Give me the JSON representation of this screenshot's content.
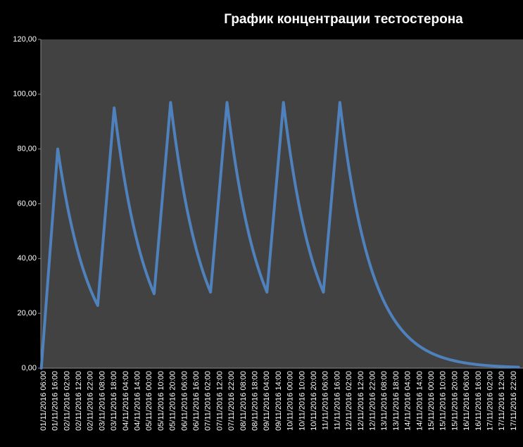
{
  "chart_data": {
    "type": "line",
    "title": "График концентрации тестостерона",
    "color": "#4f81bd",
    "ylim": [
      0,
      120
    ],
    "yticks": [
      {
        "value": 0,
        "label": "0,00"
      },
      {
        "value": 20,
        "label": "20,00"
      },
      {
        "value": 40,
        "label": "40,00"
      },
      {
        "value": 60,
        "label": "60,00"
      },
      {
        "value": 80,
        "label": "80,00"
      },
      {
        "value": 100,
        "label": "100,00"
      },
      {
        "value": 120,
        "label": "120,00"
      }
    ],
    "categories": [
      null,
      "01/11/2016 06:00",
      null,
      null,
      null,
      null,
      "01/11/2016 16:00",
      null,
      null,
      null,
      null,
      "02/11/2016 02:00",
      null,
      null,
      null,
      null,
      "02/11/2016 12:00",
      null,
      null,
      null,
      null,
      "02/11/2016 22:00",
      null,
      null,
      null,
      null,
      "03/11/2016 08:00",
      null,
      null,
      null,
      null,
      "03/11/2016 18:00",
      null,
      null,
      null,
      null,
      "04/11/2016 04:00",
      null,
      null,
      null,
      null,
      "04/11/2016 14:00",
      null,
      null,
      null,
      null,
      "05/11/2016 00:00",
      null,
      null,
      null,
      null,
      "05/11/2016 10:00",
      null,
      null,
      null,
      null,
      "05/11/2016 20:00",
      null,
      null,
      null,
      null,
      "06/11/2016 06:00",
      null,
      null,
      null,
      null,
      "06/11/2016 16:00",
      null,
      null,
      null,
      null,
      "07/11/2016 02:00",
      null,
      null,
      null,
      null,
      "07/11/2016 12:00",
      null,
      null,
      null,
      null,
      "07/11/2016 22:00",
      null,
      null,
      null,
      null,
      "08/11/2016 08:00",
      null,
      null,
      null,
      null,
      "08/11/2016 18:00",
      null,
      null,
      null,
      null,
      "09/11/2016 04:00",
      null,
      null,
      null,
      null,
      "09/11/2016 14:00",
      null,
      null,
      null,
      null,
      "10/11/2016 00:00",
      null,
      null,
      null,
      null,
      "10/11/2016 10:00",
      null,
      null,
      null,
      null,
      "10/11/2016 20:00",
      null,
      null,
      null,
      null,
      "11/11/2016 06:00",
      null,
      null,
      null,
      null,
      "11/11/2016 16:00",
      null,
      null,
      null,
      null,
      "12/11/2016 02:00",
      null,
      null,
      null,
      null,
      "12/11/2016 12:00",
      null,
      null,
      null,
      null,
      "12/11/2016 22:00",
      null,
      null,
      null,
      null,
      "13/11/2016 08:00",
      null,
      null,
      null,
      null,
      "13/11/2016 18:00",
      null,
      null,
      null,
      null,
      "14/11/2016 04:00",
      null,
      null,
      null,
      null,
      "14/11/2016 14:00",
      null,
      null,
      null,
      null,
      "15/11/2016 00:00",
      null,
      null,
      null,
      null,
      "15/11/2016 10:00",
      null,
      null,
      null,
      null,
      "15/11/2016 20:00",
      null,
      null,
      null,
      null,
      "16/11/2016 06:00",
      null,
      null,
      null,
      null,
      "16/11/2016 16:00",
      null,
      null,
      null,
      null,
      "17/11/2016 02:00",
      null,
      null,
      null,
      null,
      "17/11/2016 12:00",
      null,
      null,
      null,
      null,
      "17/11/2016 22:00",
      null,
      null
    ],
    "values": [
      0,
      11.43,
      22.86,
      34.29,
      45.71,
      57.14,
      68.57,
      80,
      74.32,
      69.04,
      64.14,
      59.59,
      55.36,
      51.43,
      47.77,
      44.38,
      41.23,
      38.3,
      35.58,
      33.06,
      30.71,
      28.53,
      26.5,
      24.62,
      22.87,
      33.17,
      43.48,
      53.78,
      64.08,
      74.39,
      84.69,
      95,
      88.26,
      81.99,
      76.17,
      70.76,
      65.73,
      61.07,
      56.73,
      52.7,
      48.96,
      45.48,
      42.25,
      39.25,
      36.47,
      33.88,
      31.47,
      29.24,
      27.16,
      37.14,
      47.11,
      57.09,
      67.07,
      77.04,
      87.02,
      97,
      90.11,
      83.71,
      77.77,
      72.25,
      67.12,
      62.35,
      57.92,
      53.81,
      49.99,
      46.44,
      43.14,
      40.08,
      37.23,
      34.59,
      32.13,
      29.85,
      27.73,
      37.63,
      47.52,
      57.42,
      67.31,
      77.21,
      87.1,
      97,
      90.11,
      83.71,
      77.77,
      72.25,
      67.12,
      62.35,
      57.92,
      53.81,
      49.99,
      46.44,
      43.14,
      40.08,
      37.23,
      34.59,
      32.13,
      29.85,
      27.73,
      37.63,
      47.52,
      57.42,
      67.31,
      77.21,
      87.1,
      97,
      90.11,
      83.71,
      77.77,
      72.25,
      67.12,
      62.35,
      57.92,
      53.81,
      49.99,
      46.44,
      43.14,
      40.08,
      37.23,
      34.59,
      32.13,
      29.85,
      27.73,
      37.63,
      47.52,
      57.42,
      67.31,
      77.21,
      87.1,
      97,
      90.11,
      83.71,
      77.77,
      72.25,
      67.12,
      62.35,
      57.92,
      53.81,
      49.99,
      46.44,
      43.14,
      40.08,
      37.23,
      34.59,
      32.13,
      29.85,
      27.73,
      25.76,
      23.93,
      22.23,
      20.65,
      19.19,
      17.82,
      16.56,
      15.38,
      14.29,
      13.28,
      12.33,
      11.46,
      10.64,
      9.89,
      9.19,
      8.53,
      7.93,
      7.36,
      6.84,
      6.36,
      5.9,
      5.48,
      5.1,
      4.73,
      4.4,
      4.09,
      3.8,
      3.53,
      3.28,
      3.04,
      2.83,
      2.63,
      2.44,
      2.27,
      2.11,
      1.96,
      1.82,
      1.69,
      1.57,
      1.46,
      1.35,
      1.26,
      1.17,
      1.09,
      1.01,
      0.94,
      0.87,
      0.81,
      0.75,
      0.7,
      0.65,
      0.6,
      0.56,
      0.52,
      0.48,
      0.45,
      0.42,
      0.39,
      0.36
    ]
  }
}
